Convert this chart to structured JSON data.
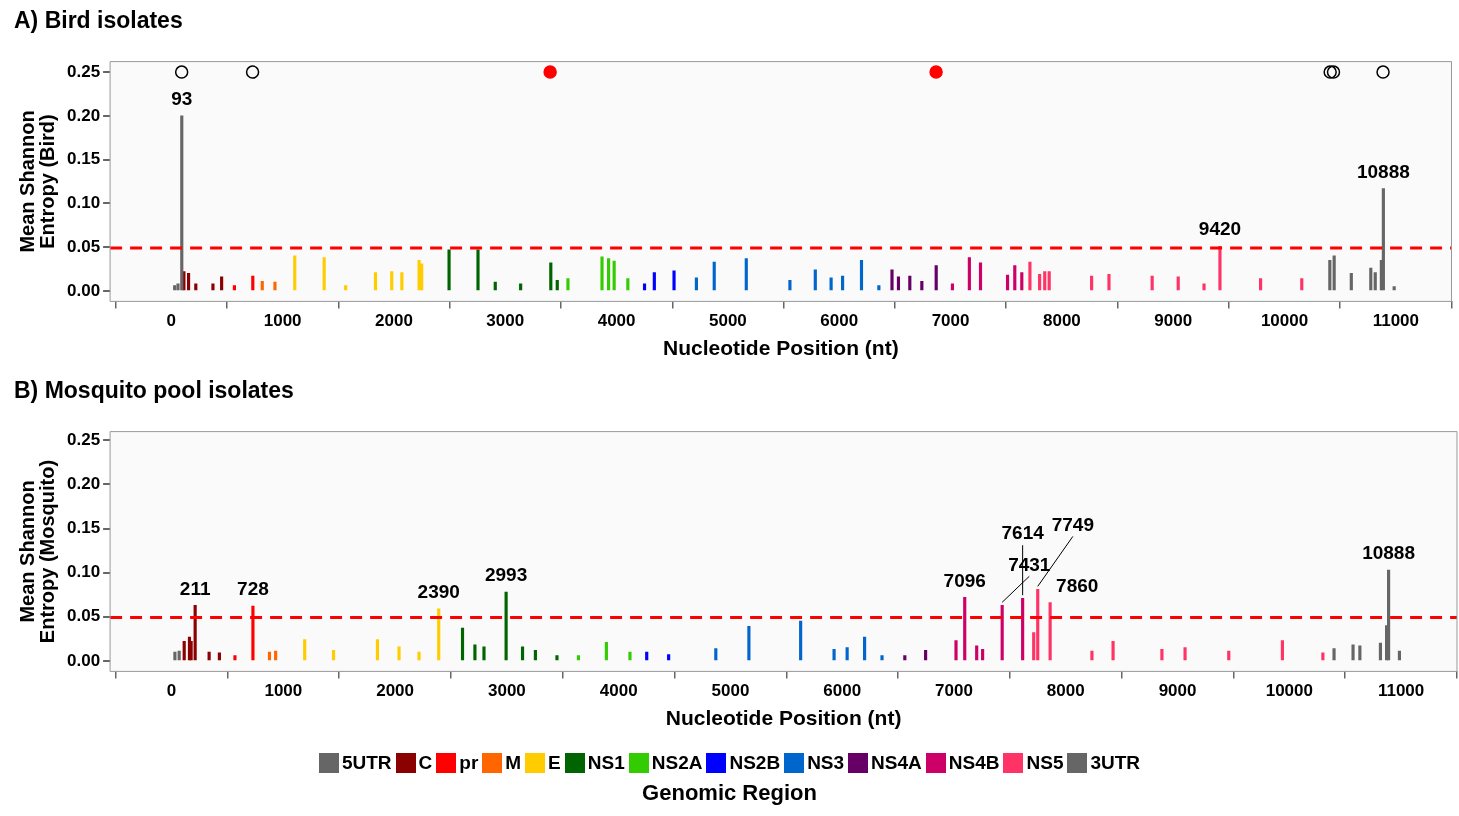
{
  "chart_data": [
    {
      "type": "bar",
      "title": "A) Bird isolates",
      "xlabel": "Nucleotide Position (nt)",
      "ylabel": "Mean Shannon Entropy (Bird)",
      "xlim": [
        -550,
        11500
      ],
      "xticks": [
        0,
        1000,
        2000,
        3000,
        4000,
        5000,
        6000,
        7000,
        8000,
        9000,
        10000,
        11000
      ],
      "ylim": [
        -0.012,
        0.262
      ],
      "yticks": [
        {
          "value": 0,
          "label": "0.00"
        },
        {
          "value": 0.05,
          "label": "0.05"
        },
        {
          "value": 0.1,
          "label": "0.10"
        },
        {
          "value": 0.15,
          "label": "0.15"
        },
        {
          "value": 0.2,
          "label": "0.20"
        },
        {
          "value": 0.25,
          "label": "0.25"
        }
      ],
      "grid": "y",
      "legend": false,
      "ref_lines": [
        {
          "axis": "y",
          "value": 0.049,
          "color": "#ff0000",
          "line_style": "dashed"
        }
      ],
      "annotations": [
        {
          "text": "93",
          "x": 94,
          "y": 0.2
        },
        {
          "text": "9420",
          "x": 9420,
          "y": 0.051
        },
        {
          "text": "10888",
          "x": 10888,
          "y": 0.117
        }
      ],
      "series": [
        {
          "color": "#666666",
          "x": [
            30,
            60,
            94
          ],
          "values": [
            0.006,
            0.008,
            0.2
          ]
        },
        {
          "color": "#8b0000",
          "x": [
            113,
            155,
            220,
            374,
            452
          ],
          "values": [
            0.022,
            0.02,
            0.008,
            0.008,
            0.016
          ]
        },
        {
          "color": "#ff0000",
          "x": [
            567,
            732
          ],
          "values": [
            0.006,
            0.017
          ]
        },
        {
          "color": "#ff6600",
          "x": [
            817,
            931
          ],
          "values": [
            0.011,
            0.01
          ]
        },
        {
          "color": "#ffcc00",
          "x": [
            1109,
            1373,
            1566,
            1834,
            1980,
            2071,
            2226,
            2249
          ],
          "values": [
            0.04,
            0.038,
            0.006,
            0.021,
            0.022,
            0.021,
            0.035,
            0.031
          ]
        },
        {
          "color": "#006400",
          "x": [
            2495,
            2755,
            2910,
            3138,
            3409,
            3467
          ],
          "values": [
            0.047,
            0.047,
            0.01,
            0.008,
            0.032,
            0.012
          ]
        },
        {
          "color": "#33cc00",
          "x": [
            3563,
            3869,
            3928,
            3978,
            4101
          ],
          "values": [
            0.014,
            0.039,
            0.037,
            0.034,
            0.014
          ]
        },
        {
          "color": "#0000ff",
          "x": [
            4251,
            4339,
            4516
          ],
          "values": [
            0.008,
            0.021,
            0.023
          ]
        },
        {
          "color": "#0066cc",
          "x": [
            4717,
            4877,
            5165,
            5557,
            5785,
            5927,
            6030,
            6200,
            6356
          ],
          "values": [
            0.015,
            0.033,
            0.037,
            0.012,
            0.024,
            0.015,
            0.017,
            0.035,
            0.006
          ]
        },
        {
          "color": "#660066",
          "x": [
            6474,
            6532,
            6634,
            6742,
            6871
          ],
          "values": [
            0.024,
            0.016,
            0.017,
            0.011,
            0.029
          ]
        },
        {
          "color": "#cc0066",
          "x": [
            7017,
            7169,
            7269,
            7512,
            7577,
            7640
          ],
          "values": [
            0.008,
            0.038,
            0.032,
            0.018,
            0.029,
            0.021
          ]
        },
        {
          "color": "#ff3366",
          "x": [
            7713,
            7800,
            7846,
            7886,
            8267,
            8423,
            8811,
            9045,
            9277,
            9420,
            9785,
            10155
          ],
          "values": [
            0.033,
            0.019,
            0.022,
            0.022,
            0.017,
            0.019,
            0.017,
            0.016,
            0.008,
            0.051,
            0.014,
            0.014
          ]
        },
        {
          "color": "#666666",
          "x": [
            10407,
            10446,
            10600,
            10775,
            10815,
            10870,
            10888,
            10985
          ],
          "values": [
            0.035,
            0.04,
            0.02,
            0.026,
            0.021,
            0.035,
            0.117,
            0.005
          ]
        },
        {
          "type": "scatter",
          "marker": "circle",
          "x": [
            93,
            730,
            3403,
            6870,
            10410,
            10440,
            10885
          ],
          "values": [
            0.25,
            0.25,
            0.25,
            0.25,
            0.25,
            0.25,
            0.25
          ],
          "colors": [
            "#000000",
            "#000000",
            "#ff0000",
            "#ff0000",
            "#000000",
            "#000000",
            "#000000"
          ]
        }
      ]
    },
    {
      "type": "bar",
      "title": "B) Mosquito pool isolates",
      "xlabel": "Nucleotide Position (nt)",
      "ylabel": "Mean Shannon Entropy (Mosquito)",
      "xlim": [
        -550,
        11500
      ],
      "xticks": [
        0,
        1000,
        2000,
        3000,
        4000,
        5000,
        6000,
        7000,
        8000,
        9000,
        10000,
        11000
      ],
      "ylim": [
        -0.012,
        0.26
      ],
      "yticks": [
        {
          "value": 0,
          "label": "0.00"
        },
        {
          "value": 0.05,
          "label": "0.05"
        },
        {
          "value": 0.1,
          "label": "0.10"
        },
        {
          "value": 0.15,
          "label": "0.15"
        },
        {
          "value": 0.2,
          "label": "0.20"
        },
        {
          "value": 0.25,
          "label": "0.25"
        }
      ],
      "grid": "y",
      "legend": "bottom",
      "legend_title": "Genomic Region",
      "ref_lines": [
        {
          "axis": "y",
          "value": 0.049,
          "color": "#ff0000",
          "line_style": "dashed"
        }
      ],
      "annotations": [
        {
          "text": "211",
          "x": 211,
          "y": 0.063
        },
        {
          "text": "728",
          "x": 728,
          "y": 0.062
        },
        {
          "text": "2390",
          "x": 2390,
          "y": 0.059
        },
        {
          "text": "2993",
          "x": 2993,
          "y": 0.078
        },
        {
          "text": "7096",
          "x": 7096,
          "y": 0.072
        },
        {
          "text": "7431",
          "x": 7431,
          "y": 0.063
        },
        {
          "text": "7614",
          "x": 7614,
          "y": 0.071
        },
        {
          "text": "7749",
          "x": 7749,
          "y": 0.081
        },
        {
          "text": "7860",
          "x": 7860,
          "y": 0.066
        },
        {
          "text": "10888",
          "x": 10888,
          "y": 0.103
        }
      ],
      "series": [
        {
          "name": "5UTR",
          "color": "#666666",
          "x": [
            30,
            68
          ],
          "values": [
            0.01,
            0.011
          ]
        },
        {
          "name": "C",
          "color": "#8b0000",
          "x": [
            113,
            160,
            175,
            211,
            336,
            428
          ],
          "values": [
            0.022,
            0.027,
            0.022,
            0.063,
            0.01,
            0.009
          ]
        },
        {
          "name": "pr",
          "color": "#ff0000",
          "x": [
            567,
            728
          ],
          "values": [
            0.006,
            0.062
          ]
        },
        {
          "name": "M",
          "color": "#ff6600",
          "x": [
            876,
            931
          ],
          "values": [
            0.01,
            0.011
          ]
        },
        {
          "name": "E",
          "color": "#ffcc00",
          "x": [
            1191,
            1449,
            1842,
            2035,
            2214,
            2390
          ],
          "values": [
            0.024,
            0.012,
            0.024,
            0.016,
            0.01,
            0.059
          ]
        },
        {
          "name": "NS1",
          "color": "#006400",
          "x": [
            2603,
            2714,
            2795,
            2993,
            3140,
            3255,
            3448
          ],
          "values": [
            0.037,
            0.018,
            0.016,
            0.078,
            0.016,
            0.012,
            0.006
          ]
        },
        {
          "name": "NS2A",
          "color": "#33cc00",
          "x": [
            3640,
            3890,
            4101
          ],
          "values": [
            0.006,
            0.021,
            0.01
          ]
        },
        {
          "name": "NS2B",
          "color": "#0000ff",
          "x": [
            4251,
            4447
          ],
          "values": [
            0.01,
            0.007
          ]
        },
        {
          "name": "NS3",
          "color": "#0066cc",
          "x": [
            4869,
            5165,
            5628,
            5927,
            6044,
            6200,
            6356
          ],
          "values": [
            0.014,
            0.039,
            0.045,
            0.013,
            0.015,
            0.027,
            0.006
          ]
        },
        {
          "name": "NS4A",
          "color": "#660066",
          "x": [
            6560,
            6746
          ],
          "values": [
            0.006,
            0.012
          ]
        },
        {
          "name": "NS4B",
          "color": "#cc0066",
          "x": [
            7018,
            7096,
            7203,
            7256,
            7431,
            7614
          ],
          "values": [
            0.023,
            0.072,
            0.017,
            0.013,
            0.063,
            0.071
          ]
        },
        {
          "name": "NS5",
          "color": "#ff3366",
          "x": [
            7713,
            7749,
            7860,
            8234,
            8423,
            8860,
            9067,
            9458,
            9938,
            10300
          ],
          "values": [
            0.032,
            0.081,
            0.066,
            0.011,
            0.022,
            0.013,
            0.015,
            0.011,
            0.023,
            0.009
          ]
        },
        {
          "name": "3UTR",
          "color": "#666666",
          "x": [
            10400,
            10570,
            10631,
            10815,
            10870,
            10888,
            10985
          ],
          "values": [
            0.014,
            0.018,
            0.017,
            0.02,
            0.04,
            0.103,
            0.011
          ]
        }
      ]
    }
  ]
}
